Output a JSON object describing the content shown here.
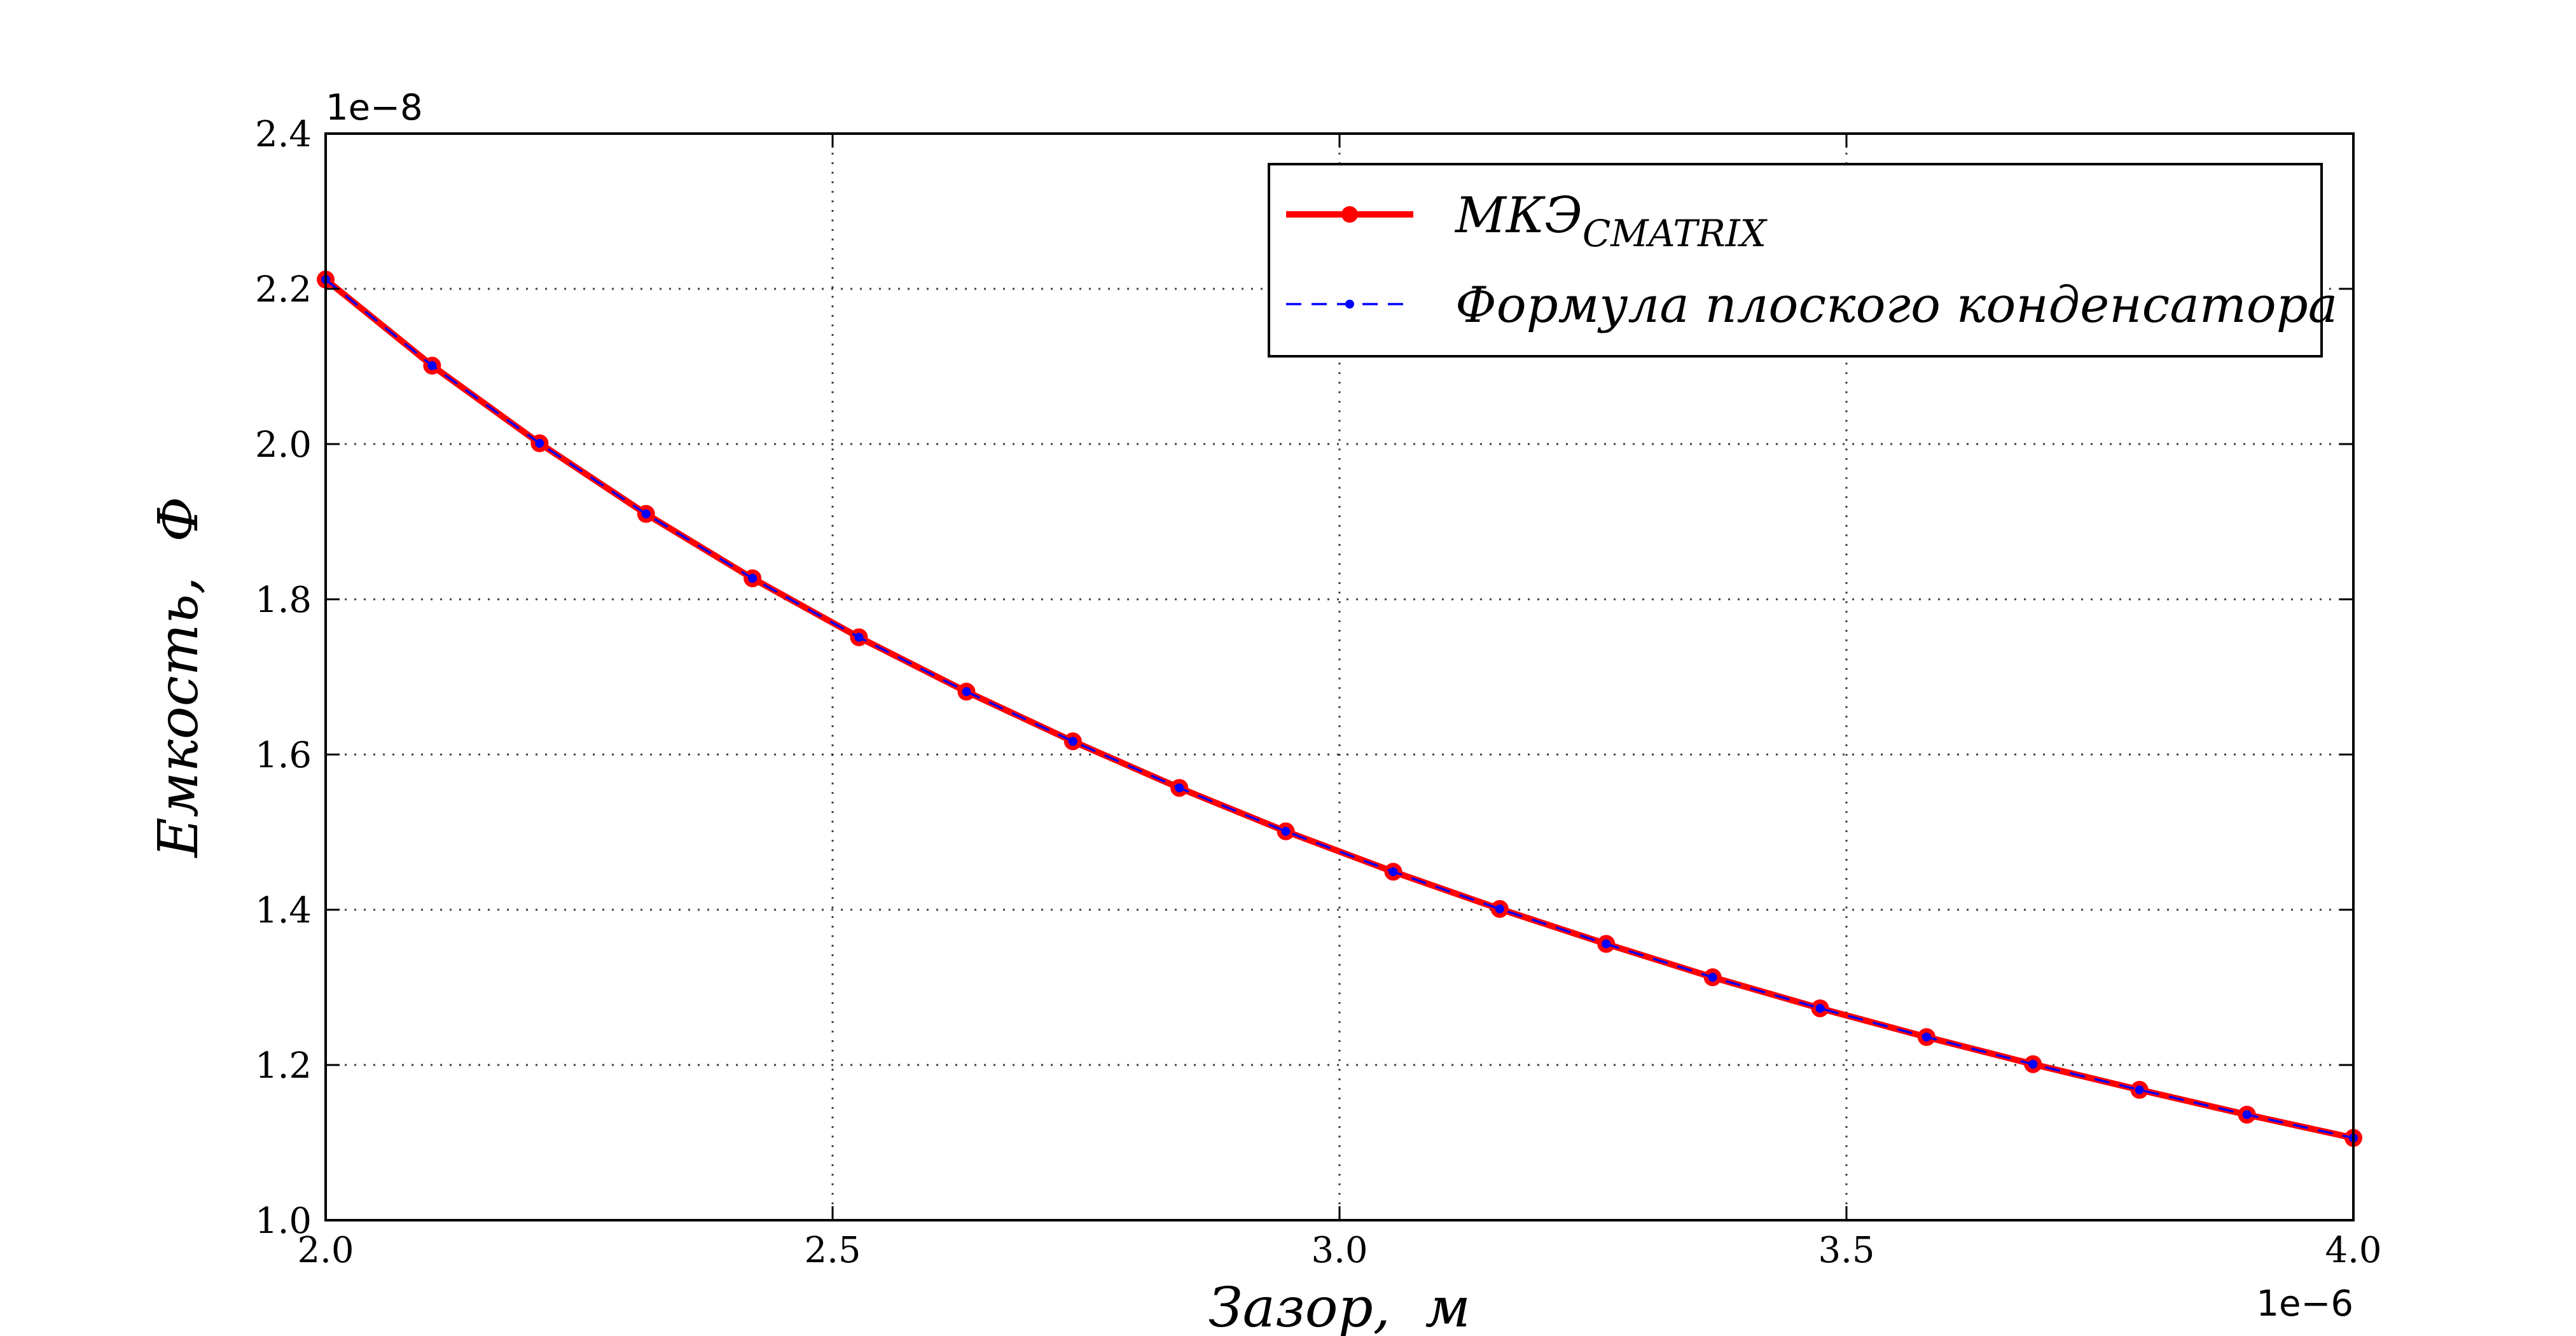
{
  "chart_data": {
    "type": "line",
    "xlabel": "Зазор,  м",
    "ylabel": "Емкость,  Ф",
    "x_exponent": "1e−6",
    "y_exponent": "1e−8",
    "xlim": [
      2.0,
      4.0
    ],
    "ylim": [
      1.0,
      2.4
    ],
    "xticks": [
      "2.0",
      "2.5",
      "3.0",
      "3.5",
      "4.0"
    ],
    "yticks": [
      "1.0",
      "1.2",
      "1.4",
      "1.6",
      "1.8",
      "2.0",
      "2.2",
      "2.4"
    ],
    "grid": true,
    "legend_position": "upper-right",
    "series": [
      {
        "name": "МКЭ",
        "name_subscript": "CMATRIX",
        "color": "#ff0000",
        "style": "solid",
        "x": [
          2.0,
          2.105,
          2.211,
          2.316,
          2.421,
          2.526,
          2.632,
          2.737,
          2.842,
          2.947,
          3.053,
          3.158,
          3.263,
          3.368,
          3.474,
          3.579,
          3.684,
          3.789,
          3.895,
          4.0
        ],
        "values": [
          2.212,
          2.101,
          2.001,
          1.91,
          1.827,
          1.751,
          1.681,
          1.617,
          1.557,
          1.501,
          1.449,
          1.401,
          1.356,
          1.313,
          1.273,
          1.236,
          1.201,
          1.168,
          1.136,
          1.106
        ]
      },
      {
        "name": "Формула плоского конденсатора",
        "color": "#0000ff",
        "style": "dashed",
        "x": [
          2.0,
          2.105,
          2.211,
          2.316,
          2.421,
          2.526,
          2.632,
          2.737,
          2.842,
          2.947,
          3.053,
          3.158,
          3.263,
          3.368,
          3.474,
          3.579,
          3.684,
          3.789,
          3.895,
          4.0
        ],
        "values": [
          2.212,
          2.101,
          2.001,
          1.91,
          1.827,
          1.751,
          1.681,
          1.617,
          1.557,
          1.501,
          1.449,
          1.401,
          1.356,
          1.313,
          1.273,
          1.236,
          1.201,
          1.168,
          1.136,
          1.106
        ]
      }
    ]
  }
}
